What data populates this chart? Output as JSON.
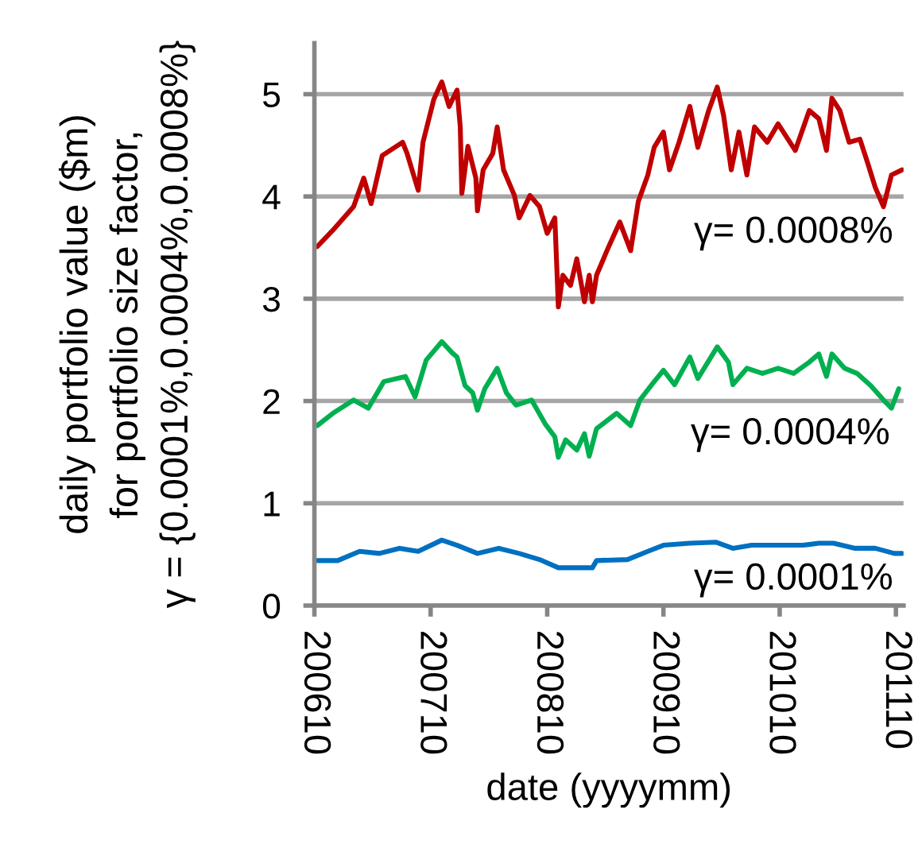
{
  "chart_data": {
    "type": "line",
    "xlabel": "date (yyyymm)",
    "ylabel": "daily portfolio value ($m)\nfor portfolio size factor,\nγ = {0.0001%,0.0004%,0.0008%}",
    "xlim": [
      "2006-10-01",
      "2011-10-25"
    ],
    "xticks": [
      {
        "value": "2006-10-01",
        "label": "200610"
      },
      {
        "value": "2007-10-01",
        "label": "200710"
      },
      {
        "value": "2008-10-01",
        "label": "200810"
      },
      {
        "value": "2009-10-01",
        "label": "200910"
      },
      {
        "value": "2010-10-01",
        "label": "201010"
      },
      {
        "value": "2011-10-01",
        "label": "201110"
      }
    ],
    "ylim": [
      0,
      5.5
    ],
    "yticks": [
      0,
      1,
      2,
      3,
      4,
      5
    ],
    "grid": "y",
    "series": [
      {
        "name": "γ= 0.0008%",
        "color": "#c00000",
        "x": [
          "2006-10-10",
          "2006-11-28",
          "2007-02-01",
          "2007-03-05",
          "2007-03-28",
          "2007-05-02",
          "2007-07-05",
          "2007-07-19",
          "2007-08-23",
          "2007-09-07",
          "2007-10-11",
          "2007-11-05",
          "2007-11-28",
          "2007-12-23",
          "2008-01-02",
          "2008-01-07",
          "2008-01-26",
          "2008-02-20",
          "2008-02-25",
          "2008-03-14",
          "2008-04-13",
          "2008-04-27",
          "2008-05-17",
          "2008-06-20",
          "2008-07-05",
          "2008-08-08",
          "2008-09-07",
          "2008-10-01",
          "2008-10-25",
          "2008-11-05",
          "2008-11-19",
          "2008-12-13",
          "2009-01-02",
          "2009-01-26",
          "2009-02-10",
          "2009-02-20",
          "2009-03-05",
          "2009-04-08",
          "2009-05-17",
          "2009-06-20",
          "2009-07-14",
          "2009-08-13",
          "2009-09-02",
          "2009-10-01",
          "2009-10-20",
          "2009-11-19",
          "2009-12-23",
          "2010-01-17",
          "2010-02-20",
          "2010-03-19",
          "2010-04-08",
          "2010-05-02",
          "2010-05-26",
          "2010-06-20",
          "2010-07-14",
          "2010-08-23",
          "2010-09-26",
          "2010-10-25",
          "2010-11-19",
          "2011-01-02",
          "2011-02-01",
          "2011-02-25",
          "2011-03-14",
          "2011-04-08",
          "2011-05-07",
          "2011-06-10",
          "2011-07-05",
          "2011-07-28",
          "2011-08-23",
          "2011-09-17",
          "2011-10-20"
        ],
        "values": [
          3.51,
          3.67,
          3.9,
          4.18,
          3.93,
          4.4,
          4.53,
          4.42,
          4.06,
          4.53,
          4.95,
          5.12,
          4.88,
          5.04,
          4.68,
          4.03,
          4.49,
          4.18,
          3.86,
          4.26,
          4.42,
          4.68,
          4.26,
          4.01,
          3.79,
          4.01,
          3.9,
          3.64,
          3.79,
          2.92,
          3.23,
          3.13,
          3.39,
          2.97,
          3.23,
          2.97,
          3.23,
          3.48,
          3.75,
          3.47,
          3.95,
          4.21,
          4.48,
          4.63,
          4.26,
          4.53,
          4.88,
          4.48,
          4.84,
          5.07,
          4.79,
          4.26,
          4.63,
          4.21,
          4.68,
          4.53,
          4.71,
          4.57,
          4.45,
          4.84,
          4.76,
          4.45,
          4.96,
          4.84,
          4.53,
          4.56,
          4.32,
          4.09,
          3.9,
          4.21,
          4.26
        ]
      },
      {
        "name": "γ= 0.0004%",
        "color": "#00b050",
        "x": [
          "2006-10-10",
          "2006-11-28",
          "2007-02-01",
          "2007-03-19",
          "2007-05-07",
          "2007-07-14",
          "2007-08-13",
          "2007-09-17",
          "2007-11-05",
          "2007-12-08",
          "2007-12-23",
          "2008-01-17",
          "2008-02-10",
          "2008-02-25",
          "2008-03-19",
          "2008-04-27",
          "2008-05-26",
          "2008-06-25",
          "2008-08-13",
          "2008-09-26",
          "2008-10-25",
          "2008-11-05",
          "2008-11-28",
          "2009-01-02",
          "2009-01-26",
          "2009-02-10",
          "2009-03-05",
          "2009-05-07",
          "2009-06-20",
          "2009-07-19",
          "2009-09-02",
          "2009-10-01",
          "2009-11-05",
          "2009-12-23",
          "2010-01-17",
          "2010-03-19",
          "2010-04-23",
          "2010-05-07",
          "2010-06-20",
          "2010-08-08",
          "2010-09-26",
          "2010-11-14",
          "2011-01-02",
          "2011-02-01",
          "2011-02-25",
          "2011-03-14",
          "2011-04-23",
          "2011-06-01",
          "2011-07-14",
          "2011-08-23",
          "2011-09-17",
          "2011-10-10"
        ],
        "values": [
          1.76,
          1.88,
          2.01,
          1.93,
          2.19,
          2.24,
          2.04,
          2.4,
          2.58,
          2.47,
          2.43,
          2.15,
          2.08,
          1.91,
          2.12,
          2.32,
          2.08,
          1.96,
          2.01,
          1.77,
          1.65,
          1.45,
          1.62,
          1.52,
          1.68,
          1.46,
          1.73,
          1.88,
          1.76,
          2.01,
          2.19,
          2.3,
          2.16,
          2.43,
          2.22,
          2.53,
          2.38,
          2.16,
          2.32,
          2.27,
          2.32,
          2.27,
          2.38,
          2.46,
          2.24,
          2.46,
          2.32,
          2.27,
          2.15,
          2.01,
          1.93,
          2.12
        ]
      },
      {
        "name": "γ= 0.0001%",
        "color": "#0070c0",
        "x": [
          "2006-10-10",
          "2006-12-13",
          "2007-02-20",
          "2007-04-23",
          "2007-06-25",
          "2007-08-23",
          "2007-11-05",
          "2007-12-23",
          "2008-02-25",
          "2008-05-02",
          "2008-07-05",
          "2008-09-07",
          "2008-11-05",
          "2009-01-02",
          "2009-02-20",
          "2009-03-05",
          "2009-06-10",
          "2009-08-13",
          "2009-10-01",
          "2009-12-23",
          "2010-03-14",
          "2010-05-07",
          "2010-07-05",
          "2010-09-26",
          "2010-12-13",
          "2011-02-01",
          "2011-03-19",
          "2011-05-26",
          "2011-07-28",
          "2011-09-26",
          "2011-10-20"
        ],
        "values": [
          0.44,
          0.44,
          0.53,
          0.51,
          0.56,
          0.53,
          0.64,
          0.59,
          0.51,
          0.56,
          0.51,
          0.45,
          0.37,
          0.37,
          0.37,
          0.44,
          0.45,
          0.53,
          0.59,
          0.61,
          0.62,
          0.56,
          0.59,
          0.59,
          0.59,
          0.61,
          0.61,
          0.56,
          0.56,
          0.51,
          0.51
        ]
      }
    ]
  }
}
